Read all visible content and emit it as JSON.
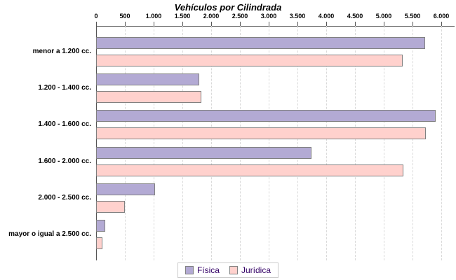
{
  "chart_data": {
    "type": "bar",
    "orientation": "horizontal",
    "title": "Vehículos por Cilindrada",
    "categories": [
      "menor a 1.200 cc.",
      "1.200 - 1.400 cc.",
      "1.400 - 1.600 cc.",
      "1.600 - 2.000 cc.",
      "2.000 - 2.500 cc.",
      "mayor o igual a 2.500 cc."
    ],
    "series": [
      {
        "name": "Física",
        "color": "#b3aad4",
        "border_color": "#808080",
        "values": [
          5700,
          1770,
          5880,
          3720,
          1000,
          130
        ]
      },
      {
        "name": "Jurídica",
        "color": "#ffd1cd",
        "border_color": "#808080",
        "values": [
          5300,
          1800,
          5710,
          5320,
          470,
          80
        ]
      }
    ],
    "xlim": [
      0,
      6000
    ],
    "x_tick_step": 500,
    "x_tick_labels": [
      "0",
      "500",
      "1.000",
      "1.500",
      "2.000",
      "2.500",
      "3.000",
      "3.500",
      "4.000",
      "4.500",
      "5.000",
      "5.500",
      "6.000"
    ],
    "grid": "vertical-dashed",
    "legend_position": "bottom",
    "legend_text_color": "#330066"
  }
}
